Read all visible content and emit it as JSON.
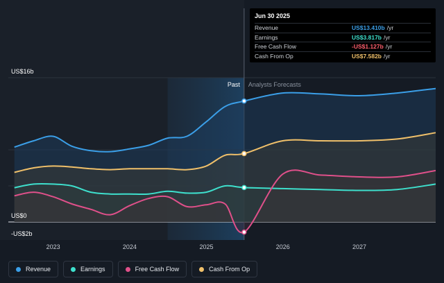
{
  "chart_data": {
    "type": "area",
    "y_axis": {
      "labels": [
        "US$16b",
        "US$0",
        "-US$2b"
      ],
      "ylim": [
        -2,
        16
      ]
    },
    "x_axis": {
      "ticks": [
        "2023",
        "2024",
        "2025",
        "2026",
        "2027"
      ],
      "range": [
        "2022-06-01",
        "2027-12-31"
      ]
    },
    "past_label": "Past",
    "forecast_label": "Analysts Forecasts",
    "forecast_start": "2025-06-30",
    "series": [
      {
        "name": "Revenue",
        "color": "#3b9fe8",
        "points": [
          [
            "2022-06-30",
            8.3
          ],
          [
            "2022-09-30",
            9.0
          ],
          [
            "2022-12-31",
            9.5
          ],
          [
            "2023-03-31",
            8.4
          ],
          [
            "2023-06-30",
            7.9
          ],
          [
            "2023-09-30",
            7.8
          ],
          [
            "2023-12-31",
            8.1
          ],
          [
            "2024-03-31",
            8.5
          ],
          [
            "2024-06-30",
            9.3
          ],
          [
            "2024-09-30",
            9.5
          ],
          [
            "2024-12-31",
            11.1
          ],
          [
            "2025-03-31",
            12.8
          ],
          [
            "2025-06-30",
            13.41
          ],
          [
            "2025-12-31",
            14.3
          ],
          [
            "2026-06-30",
            14.2
          ],
          [
            "2026-12-31",
            14.0
          ],
          [
            "2027-06-30",
            14.3
          ],
          [
            "2027-12-31",
            14.8
          ]
        ]
      },
      {
        "name": "Earnings",
        "color": "#3ee0cd",
        "points": [
          [
            "2022-06-30",
            3.8
          ],
          [
            "2022-09-30",
            4.2
          ],
          [
            "2022-12-31",
            4.2
          ],
          [
            "2023-03-31",
            4.0
          ],
          [
            "2023-06-30",
            3.3
          ],
          [
            "2023-09-30",
            3.1
          ],
          [
            "2023-12-31",
            3.1
          ],
          [
            "2024-03-31",
            3.1
          ],
          [
            "2024-06-30",
            3.4
          ],
          [
            "2024-09-30",
            3.2
          ],
          [
            "2024-12-31",
            3.3
          ],
          [
            "2025-03-31",
            4.0
          ],
          [
            "2025-06-30",
            3.817
          ],
          [
            "2025-12-31",
            3.7
          ],
          [
            "2026-06-30",
            3.6
          ],
          [
            "2026-12-31",
            3.5
          ],
          [
            "2027-06-30",
            3.6
          ],
          [
            "2027-12-31",
            4.2
          ]
        ]
      },
      {
        "name": "Free Cash Flow",
        "color": "#e0508a",
        "points": [
          [
            "2022-06-30",
            2.9
          ],
          [
            "2022-09-30",
            3.3
          ],
          [
            "2022-12-31",
            2.8
          ],
          [
            "2023-03-31",
            2.0
          ],
          [
            "2023-06-30",
            1.4
          ],
          [
            "2023-09-30",
            0.8
          ],
          [
            "2023-12-31",
            1.8
          ],
          [
            "2024-03-31",
            2.6
          ],
          [
            "2024-06-30",
            2.8
          ],
          [
            "2024-09-30",
            1.7
          ],
          [
            "2024-12-31",
            1.9
          ],
          [
            "2025-03-31",
            2.0
          ],
          [
            "2025-06-30",
            -1.127
          ],
          [
            "2025-12-31",
            5.3
          ],
          [
            "2026-06-30",
            5.2
          ],
          [
            "2026-12-31",
            5.0
          ],
          [
            "2027-06-30",
            5.0
          ],
          [
            "2027-12-31",
            5.7
          ]
        ]
      },
      {
        "name": "Cash From Op",
        "color": "#f0c06a",
        "points": [
          [
            "2022-06-30",
            5.5
          ],
          [
            "2022-09-30",
            6.0
          ],
          [
            "2022-12-31",
            6.2
          ],
          [
            "2023-03-31",
            6.1
          ],
          [
            "2023-06-30",
            5.9
          ],
          [
            "2023-09-30",
            5.8
          ],
          [
            "2023-12-31",
            5.9
          ],
          [
            "2024-03-31",
            5.9
          ],
          [
            "2024-06-30",
            5.9
          ],
          [
            "2024-09-30",
            5.8
          ],
          [
            "2024-12-31",
            6.2
          ],
          [
            "2025-03-31",
            7.4
          ],
          [
            "2025-06-30",
            7.582
          ],
          [
            "2025-12-31",
            9.0
          ],
          [
            "2026-06-30",
            9.0
          ],
          [
            "2026-12-31",
            9.0
          ],
          [
            "2027-06-30",
            9.2
          ],
          [
            "2027-12-31",
            9.9
          ]
        ]
      }
    ],
    "legend_placement": "bottom",
    "grid": true
  },
  "tooltip": {
    "date": "Jun 30 2025",
    "rows": [
      {
        "label": "Revenue",
        "value": "US$13.410b",
        "unit": "/yr",
        "color": "#3b9fe8"
      },
      {
        "label": "Earnings",
        "value": "US$3.817b",
        "unit": "/yr",
        "color": "#3ee0cd"
      },
      {
        "label": "Free Cash Flow",
        "value": "-US$1.127b",
        "unit": "/yr",
        "color": "#ff5f6d"
      },
      {
        "label": "Cash From Op",
        "value": "US$7.582b",
        "unit": "/yr",
        "color": "#f0c06a"
      }
    ]
  },
  "legend": [
    {
      "label": "Revenue",
      "color": "#3b9fe8"
    },
    {
      "label": "Earnings",
      "color": "#3ee0cd"
    },
    {
      "label": "Free Cash Flow",
      "color": "#e0508a"
    },
    {
      "label": "Cash From Op",
      "color": "#f0c06a"
    }
  ]
}
